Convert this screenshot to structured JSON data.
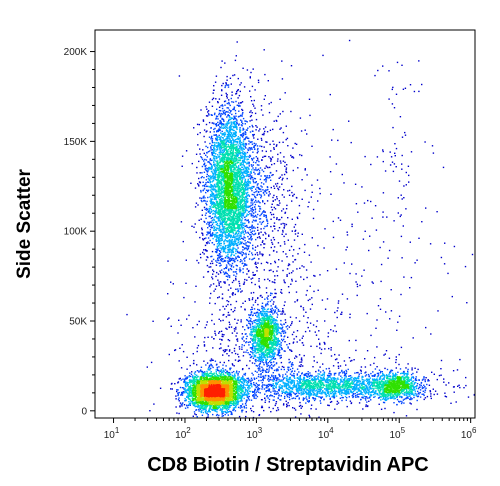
{
  "chart_data": {
    "type": "scatter",
    "plot_style": "flow-cytometry pseudocolor density",
    "xlabel": "CD8 Biotin / Streptavidin APC",
    "ylabel": "Side Scatter",
    "x_scale": "log",
    "y_scale": "linear",
    "xlim": [
      5.5,
      1150000
    ],
    "ylim": [
      -4000,
      212000
    ],
    "x_ticks": [
      {
        "value": 10,
        "base": "10",
        "exp": "1"
      },
      {
        "value": 100,
        "base": "10",
        "exp": "2"
      },
      {
        "value": 1000,
        "base": "10",
        "exp": "3"
      },
      {
        "value": 10000,
        "base": "10",
        "exp": "4"
      },
      {
        "value": 100000,
        "base": "10",
        "exp": "5"
      },
      {
        "value": 1000000,
        "base": "10",
        "exp": "6"
      }
    ],
    "y_ticks": [
      {
        "value": 0,
        "label": "0"
      },
      {
        "value": 50000,
        "label": "50K"
      },
      {
        "value": 100000,
        "label": "100K"
      },
      {
        "value": 150000,
        "label": "150K"
      },
      {
        "value": 200000,
        "label": "200K"
      }
    ],
    "grid": false,
    "legend": "none",
    "density_colors": [
      "#0000cc",
      "#0044ff",
      "#00b0ff",
      "#00e0b0",
      "#30e000",
      "#c0e000",
      "#ff9000",
      "#ff2000"
    ],
    "populations": [
      {
        "n": 3600,
        "x_center": 400,
        "x_spread_decades": 0.16,
        "y_center": 125000,
        "y_spread": 22000
      },
      {
        "n": 1000,
        "x_center": 900,
        "x_spread_decades": 0.35,
        "y_center": 118000,
        "y_spread": 28000
      },
      {
        "n": 3200,
        "x_center": 250,
        "x_spread_decades": 0.2,
        "y_center": 11000,
        "y_spread": 5000
      },
      {
        "n": 1200,
        "x_center": 1300,
        "x_spread_decades": 0.11,
        "y_center": 42000,
        "y_spread": 8000
      },
      {
        "n": 1800,
        "x_center": 12000,
        "x_spread_decades": 0.65,
        "y_center": 14000,
        "y_spread": 4000
      },
      {
        "n": 700,
        "x_center": 90000,
        "x_spread_decades": 0.15,
        "y_center": 14000,
        "y_spread": 4000
      },
      {
        "n": 700,
        "x_center": 1000,
        "x_spread_decades": 0.6,
        "y_center": 30000,
        "y_spread": 20000
      },
      {
        "n": 300,
        "x_center": 20000,
        "x_spread_decades": 0.8,
        "y_center": 60000,
        "y_spread": 55000
      },
      {
        "n": 60,
        "x_center": 90000,
        "x_spread_decades": 0.15,
        "y_center": 140000,
        "y_spread": 25000
      }
    ]
  }
}
